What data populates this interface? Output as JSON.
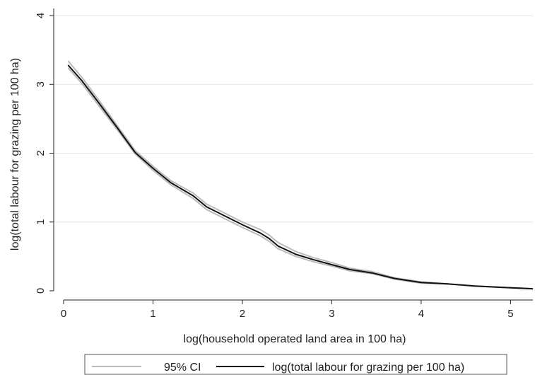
{
  "chart_data": {
    "type": "line",
    "title": "",
    "xlabel": "log(household operated land area in 100 ha)",
    "ylabel": "log(total labour for grazing per 100 ha)",
    "xlim": [
      0,
      5.25
    ],
    "ylim": [
      0,
      4
    ],
    "xticks": [
      0,
      1,
      2,
      3,
      4,
      5
    ],
    "yticks": [
      0,
      1,
      2,
      3,
      4
    ],
    "grid": "horizontal",
    "legend": "bottom",
    "series": [
      {
        "name": "log(total labour for grazing per 100 ha)",
        "color": "#111111",
        "x": [
          0.05,
          0.2,
          0.4,
          0.6,
          0.8,
          1.0,
          1.2,
          1.45,
          1.6,
          1.8,
          2.0,
          2.2,
          2.3,
          2.4,
          2.6,
          2.8,
          3.0,
          3.2,
          3.45,
          3.7,
          3.9,
          4.0,
          4.3,
          4.6,
          4.9,
          5.25
        ],
        "y": [
          3.28,
          3.06,
          2.72,
          2.37,
          2.01,
          1.78,
          1.57,
          1.38,
          1.22,
          1.09,
          0.96,
          0.84,
          0.76,
          0.65,
          0.53,
          0.45,
          0.38,
          0.31,
          0.26,
          0.18,
          0.14,
          0.12,
          0.1,
          0.07,
          0.05,
          0.03
        ]
      },
      {
        "name": "95% CI",
        "color": "#bbbbbb",
        "upper": [
          3.34,
          3.11,
          2.76,
          2.4,
          2.04,
          1.81,
          1.6,
          1.42,
          1.26,
          1.13,
          1.0,
          0.89,
          0.81,
          0.7,
          0.57,
          0.48,
          0.41,
          0.33,
          0.28,
          0.19,
          0.15,
          0.13,
          0.1,
          0.07,
          0.05,
          0.03
        ],
        "lower": [
          3.24,
          3.02,
          2.68,
          2.34,
          1.99,
          1.75,
          1.54,
          1.34,
          1.18,
          1.05,
          0.92,
          0.8,
          0.72,
          0.61,
          0.5,
          0.42,
          0.36,
          0.29,
          0.25,
          0.17,
          0.13,
          0.11,
          0.1,
          0.07,
          0.05,
          0.03
        ]
      }
    ]
  }
}
